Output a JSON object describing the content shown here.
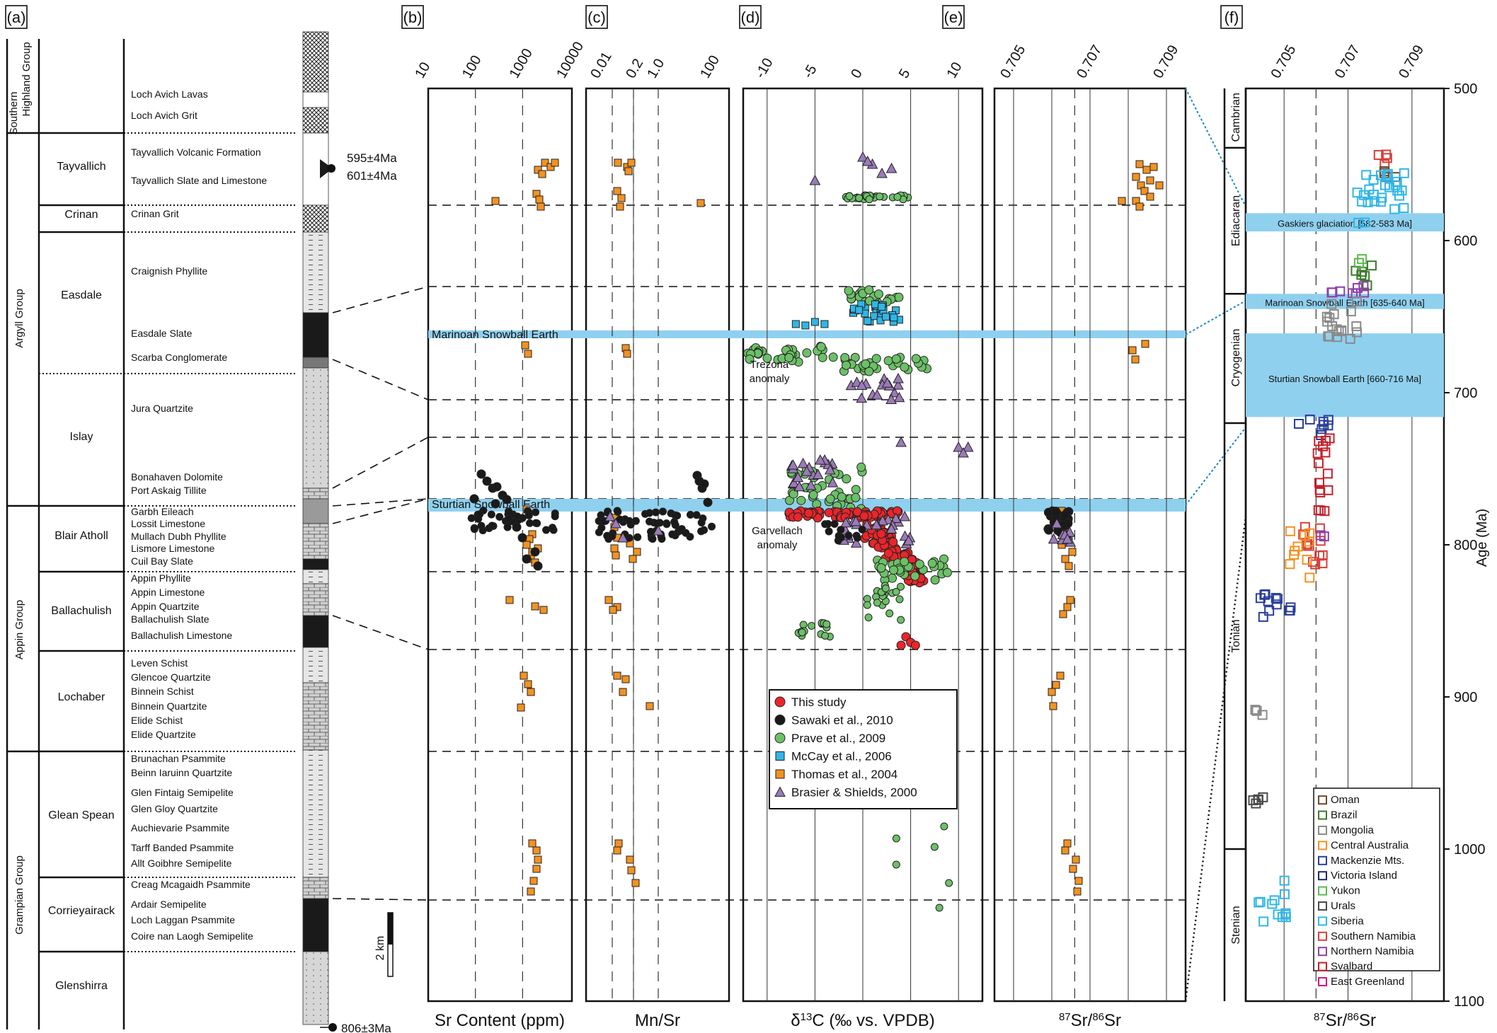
{
  "panel_labels": [
    "(a)",
    "(b)",
    "(c)",
    "(d)",
    "(e)",
    "(f)"
  ],
  "panel_a": {
    "groups": [
      "Southern Highland Group",
      "Argyll Group",
      "Appin Group",
      "Grampian Group"
    ],
    "subgroups": [
      "Tayvallich",
      "Crinan",
      "Easdale",
      "Islay",
      "Blair Atholl",
      "Ballachulish",
      "Lochaber",
      "Glean Spean",
      "Corrieyairack",
      "Glenshirra"
    ],
    "formations": [
      "Loch Avich Lavas",
      "Loch Avich Grit",
      "Tayvallich Volcanic Formation",
      "Tayvallich Slate and Limestone",
      "Crinan Grit",
      "Craignish Phyllite",
      "Easdale Slate",
      "Scarba Conglomerate",
      "Jura Quartzite",
      "Bonahaven Dolomite",
      "Port Askaig Tillite",
      "Garbh Eileach",
      "Lossit Limestone",
      "Mullach Dubh Phyllite",
      "Lismore Limestone",
      "Cuil Bay Slate",
      "Appin Phyllite",
      "Appin Limestone",
      "Appin Quartzite",
      "Ballachulish Slate",
      "Ballachulish Limestone",
      "Leven Schist",
      "Glencoe Quartzite",
      "Binnein Schist",
      "Binnein Quartzite",
      "Elide Schist",
      "Elide Quartzite",
      "Brunachan Psammite",
      "Beinn Iaruinn Quartzite",
      "Glen Fintaig Semipelite",
      "Glen Gloy Quartzite",
      "Auchievarie Psammite",
      "Tarff Banded Psammite",
      "Allt Goibhre Semipelite",
      "Creag Mcagaidh Psammite",
      "Ardair Semipelite",
      "Loch Laggan Psammite",
      "Coire nan Laogh Semipelite"
    ],
    "ages": [
      "595±4Ma",
      "601±4Ma",
      "806±3Ma"
    ],
    "scale_bar": "2 km"
  },
  "bands": {
    "marinoan": "Marinoan Snowball Earth",
    "sturtian": "Sturtian Snowball Earth",
    "gaskiers_f": "Gaskiers glaciation [582-583 Ma]",
    "marinoan_f": "Marinoan Snowball Earth [635-640 Ma]",
    "sturtian_f": "Sturtian Snowball Earth [660-716 Ma]"
  },
  "annotations": {
    "trezona": [
      "Trezona",
      "anomaly"
    ],
    "garvellach": [
      "Garvellach",
      "anomaly"
    ]
  },
  "colors": {
    "band": "#8fd0ef",
    "band_text": "#1a86c8",
    "red": "#e8262b",
    "black": "#1a1a1a",
    "green": "#6cc067",
    "cyan": "#30b6e6",
    "orange": "#f39221",
    "purple": "#9a7ab8"
  },
  "legend_main": [
    {
      "label": "This study",
      "marker": "circle",
      "color": "#e8262b"
    },
    {
      "label": "Sawaki et al., 2010",
      "marker": "circle",
      "color": "#1a1a1a"
    },
    {
      "label": "Prave et al., 2009",
      "marker": "circle",
      "color": "#6cc067"
    },
    {
      "label": "McCay et al., 2006",
      "marker": "square",
      "color": "#30b6e6"
    },
    {
      "label": "Thomas et al., 2004",
      "marker": "square",
      "color": "#f39221"
    },
    {
      "label": "Brasier & Shields, 2000",
      "marker": "triangle",
      "color": "#9a7ab8"
    }
  ],
  "legend_f": [
    {
      "label": "Oman",
      "color": "#6b4a2b"
    },
    {
      "label": "Brazil",
      "color": "#3c7a2c"
    },
    {
      "label": "Mongolia",
      "color": "#8a8a8a"
    },
    {
      "label": "Central Australia",
      "color": "#f39221"
    },
    {
      "label": "Mackenzie Mts.",
      "color": "#2a3f99"
    },
    {
      "label": "Victoria Island",
      "color": "#1f2a66"
    },
    {
      "label": "Yukon",
      "color": "#5cb84e"
    },
    {
      "label": "Urals",
      "color": "#4a4a4a"
    },
    {
      "label": "Siberia",
      "color": "#30b6e6"
    },
    {
      "label": "Southern Namibia",
      "color": "#d6403a"
    },
    {
      "label": "Northern Namibia",
      "color": "#8e3fa8"
    },
    {
      "label": "Svalbard",
      "color": "#c4202a"
    },
    {
      "label": "East Greenland",
      "color": "#d01a8a"
    }
  ],
  "chart_data": [
    {
      "type": "scatter",
      "panel": "b",
      "xlabel": "Sr Content (ppm)",
      "x_ticks": [
        "10",
        "100",
        "1000",
        "10000"
      ],
      "x_scale": "log",
      "xlim": [
        10,
        10000
      ],
      "series": [
        {
          "name": "Thomas et al., 2004",
          "points": [
            [
              1500,
              150
            ],
            [
              1800,
              155
            ],
            [
              2000,
              148
            ],
            [
              1300,
              175
            ],
            [
              1600,
              180
            ],
            [
              500,
              197
            ],
            [
              1300,
              190
            ],
            [
              1400,
              200
            ],
            [
              1100,
              480
            ],
            [
              1200,
              492
            ],
            [
              1000,
              830
            ],
            [
              1400,
              898
            ],
            [
              700,
              1000
            ],
            [
              1200,
              1010
            ]
          ]
        },
        {
          "name": "Sawaki et al., 2010",
          "points": [
            [
              200,
              650
            ],
            [
              400,
              700
            ],
            [
              700,
              726
            ],
            [
              300,
              755
            ],
            [
              1000,
              760
            ],
            [
              2000,
              768
            ],
            [
              1500,
              790
            ],
            [
              1200,
              800
            ]
          ]
        }
      ]
    },
    {
      "type": "scatter",
      "panel": "c",
      "xlabel": "Mn/Sr",
      "x_ticks": [
        "0.01",
        "0.2",
        "1.0",
        "100"
      ],
      "x_scale": "log",
      "series": [
        {
          "name": "Thomas et al., 2004",
          "points": [
            [
              0.05,
              150
            ],
            [
              0.08,
              165
            ],
            [
              0.06,
              188
            ],
            [
              8,
              197
            ]
          ]
        }
      ]
    },
    {
      "type": "scatter",
      "panel": "d",
      "xlabel": "δ13C (‰ vs. VPDB)",
      "x_ticks": [
        "-10",
        "-5",
        "0",
        "5",
        "10"
      ],
      "xlim": [
        -12.5,
        12.5
      ],
      "series": [
        {
          "name": "This study",
          "points": [
            [
              0,
              770
            ],
            [
              2,
              790
            ],
            [
              4,
              805
            ],
            [
              5,
              880
            ]
          ]
        },
        {
          "name": "Prave et al., 2009",
          "points": [
            [
              0,
              175
            ],
            [
              5,
              680
            ],
            [
              -8,
              760
            ],
            [
              2,
              820
            ],
            [
              -6,
              840
            ],
            [
              4,
              980
            ]
          ]
        },
        {
          "name": "McCay et al., 2006",
          "points": [
            [
              -3,
              650
            ],
            [
              0,
              640
            ],
            [
              2,
              630
            ]
          ]
        },
        {
          "name": "Brasier & Shields, 2000",
          "points": [
            [
              0,
              120
            ],
            [
              -5,
              140
            ],
            [
              3,
              690
            ],
            [
              11,
              740
            ]
          ]
        }
      ]
    },
    {
      "type": "scatter",
      "panel": "e",
      "xlabel": "87Sr/86Sr",
      "x_ticks": [
        "0.705",
        "0.707",
        "0.709"
      ],
      "xlim": [
        0.7045,
        0.7095
      ],
      "series": [
        {
          "name": "Thomas et al., 2004",
          "points": [
            [
              0.7087,
              150
            ],
            [
              0.7085,
              190
            ],
            [
              0.7086,
              675
            ],
            [
              0.7068,
              790
            ],
            [
              0.7067,
              830
            ],
            [
              0.7066,
              895
            ],
            [
              0.7065,
              1000
            ]
          ]
        }
      ]
    },
    {
      "type": "scatter",
      "panel": "f",
      "xlabel": "87Sr/86Sr",
      "ylabel": "Age (Ma)",
      "x_ticks": [
        "0.705",
        "0.707",
        "0.709"
      ],
      "y_ticks": [
        "500",
        "600",
        "700",
        "800",
        "900",
        "1000",
        "1100"
      ],
      "ylim": [
        500,
        1100
      ],
      "periods": [
        "Cambrian",
        "Ediacaran",
        "Cryogenian",
        "Tonian",
        "Stenian"
      ],
      "series": [
        {
          "name": "Siberia",
          "points": [
            [
              0.7078,
              560
            ],
            [
              0.7072,
              590
            ],
            [
              0.7055,
              1030
            ]
          ]
        },
        {
          "name": "Mongolia",
          "points": [
            [
              0.7068,
              650
            ],
            [
              0.705,
              912
            ],
            [
              0.705,
              965
            ]
          ]
        },
        {
          "name": "Mackenzie Mts.",
          "points": [
            [
              0.7062,
              725
            ],
            [
              0.7055,
              840
            ]
          ]
        },
        {
          "name": "Southern Namibia",
          "points": [
            [
              0.7066,
              755
            ],
            [
              0.7064,
              805
            ]
          ]
        },
        {
          "name": "Central Australia",
          "points": [
            [
              0.706,
              810
            ]
          ]
        }
      ]
    }
  ]
}
